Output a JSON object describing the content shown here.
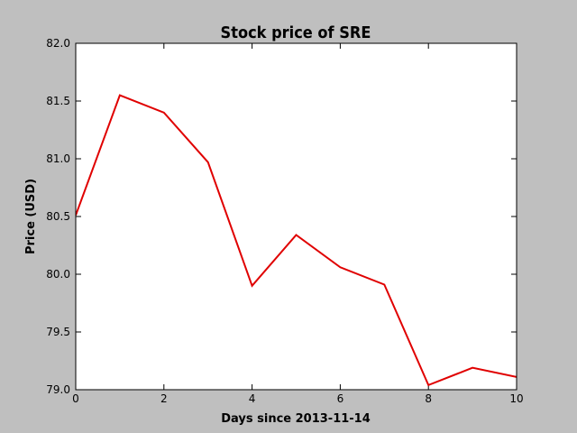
{
  "chart_data": {
    "type": "line",
    "title": "Stock price of SRE",
    "xlabel": "Days since 2013-11-14",
    "ylabel": "Price (USD)",
    "xlim": [
      0,
      10
    ],
    "ylim": [
      79.0,
      82.0
    ],
    "xticks": [
      0,
      2,
      4,
      6,
      8,
      10
    ],
    "yticks": [
      79.0,
      79.5,
      80.0,
      80.5,
      81.0,
      81.5,
      82.0
    ],
    "xtick_labels": [
      "0",
      "2",
      "4",
      "6",
      "8",
      "10"
    ],
    "ytick_labels": [
      "79.0",
      "79.5",
      "80.0",
      "80.5",
      "81.0",
      "81.5",
      "82.0"
    ],
    "grid": false,
    "series": [
      {
        "color": "#e00000",
        "x": [
          0,
          1,
          2,
          3,
          4,
          5,
          6,
          7,
          8,
          9,
          10
        ],
        "y": [
          80.51,
          81.55,
          81.4,
          80.97,
          79.9,
          80.34,
          80.06,
          79.91,
          79.04,
          79.19,
          79.11
        ]
      }
    ]
  }
}
